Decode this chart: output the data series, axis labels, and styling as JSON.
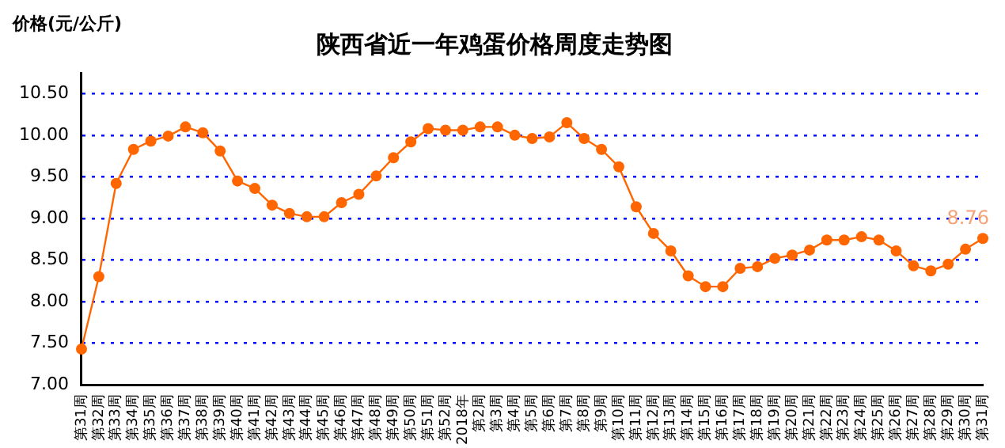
{
  "chart_data": {
    "type": "line",
    "title": "陕西省近一年鸡蛋价格周度走势图",
    "ylabel": "价格(元/公斤)",
    "categories": [
      "第31周",
      "第32周",
      "第33周",
      "第34周",
      "第35周",
      "第36周",
      "第37周",
      "第38周",
      "第39周",
      "第40周",
      "第41周",
      "第42周",
      "第43周",
      "第44周",
      "第45周",
      "第46周",
      "第47周",
      "第48周",
      "第49周",
      "第50周",
      "第51周",
      "第52周",
      "2018年",
      "第2周",
      "第3周",
      "第4周",
      "第5周",
      "第6周",
      "第7周",
      "第8周",
      "第9周",
      "第10周",
      "第11周",
      "第12周",
      "第13周",
      "第14周",
      "第15周",
      "第16周",
      "第17周",
      "第18周",
      "第19周",
      "第20周",
      "第21周",
      "第22周",
      "第23周",
      "第24周",
      "第25周",
      "第26周",
      "第27周",
      "第28周",
      "第29周",
      "第30周",
      "第31周"
    ],
    "series": [
      {
        "color": "#ff6600",
        "values": [
          7.43,
          8.3,
          9.42,
          9.83,
          9.93,
          9.99,
          10.1,
          10.03,
          9.81,
          9.45,
          9.36,
          9.16,
          9.06,
          9.02,
          9.02,
          9.19,
          9.29,
          9.51,
          9.73,
          9.92,
          10.08,
          10.06,
          10.06,
          10.1,
          10.1,
          10.0,
          9.96,
          9.98,
          10.15,
          9.96,
          9.83,
          9.62,
          9.14,
          8.82,
          8.61,
          8.31,
          8.18,
          8.18,
          8.4,
          8.42,
          8.52,
          8.56,
          8.62,
          8.74,
          8.74,
          8.78,
          8.74,
          8.61,
          8.43,
          8.37,
          8.45,
          8.63,
          8.76
        ],
        "value_labels": [
          null,
          null,
          null,
          null,
          null,
          null,
          null,
          null,
          null,
          null,
          null,
          null,
          null,
          null,
          null,
          null,
          null,
          null,
          null,
          null,
          null,
          null,
          null,
          null,
          null,
          null,
          null,
          null,
          null,
          null,
          null,
          null,
          null,
          null,
          null,
          null,
          null,
          null,
          null,
          null,
          null,
          null,
          null,
          null,
          null,
          null,
          null,
          null,
          null,
          null,
          null,
          null,
          "8.76"
        ]
      }
    ],
    "ylim": [
      7,
      10.75
    ],
    "yticks": [
      {
        "value": 7,
        "label": "7.00"
      },
      {
        "value": 7.5,
        "label": "7.50"
      },
      {
        "value": 8,
        "label": "8.00"
      },
      {
        "value": 8.5,
        "label": "8.50"
      },
      {
        "value": 9,
        "label": "9.00"
      },
      {
        "value": 9.5,
        "label": "9.50"
      },
      {
        "value": 10,
        "label": "10.00"
      },
      {
        "value": 10.5,
        "label": "10.50"
      }
    ],
    "grid": "y",
    "marker": "circle",
    "line_style": "solid",
    "legend": false
  }
}
